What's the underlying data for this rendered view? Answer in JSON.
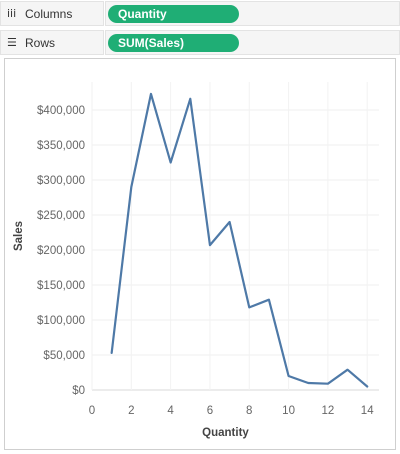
{
  "shelves": {
    "columns": {
      "label": "Columns",
      "pill": "Quantity"
    },
    "rows": {
      "label": "Rows",
      "pill": "SUM(Sales)"
    }
  },
  "colors": {
    "pill": "#1fae75",
    "line": "#4e79a7"
  },
  "chart_data": {
    "type": "line",
    "xlabel": "Quantity",
    "ylabel": "Sales",
    "x": [
      1,
      2,
      3,
      4,
      5,
      6,
      7,
      8,
      9,
      10,
      11,
      12,
      13,
      14
    ],
    "series": [
      {
        "values": [
          53000,
          290000,
          423000,
          325000,
          416000,
          207000,
          240000,
          118000,
          129000,
          20000,
          10000,
          9000,
          29000,
          5000
        ]
      }
    ],
    "xlim": [
      0,
      14.6
    ],
    "ylim": [
      0,
      440000
    ],
    "xticks": [
      0,
      2,
      4,
      6,
      8,
      10,
      12,
      14
    ],
    "yticks": [
      0,
      50000,
      100000,
      150000,
      200000,
      250000,
      300000,
      350000,
      400000
    ],
    "ytick_labels": [
      "$0",
      "$50,000",
      "$100,000",
      "$150,000",
      "$200,000",
      "$250,000",
      "$300,000",
      "$350,000",
      "$400,000"
    ],
    "grid": true
  }
}
